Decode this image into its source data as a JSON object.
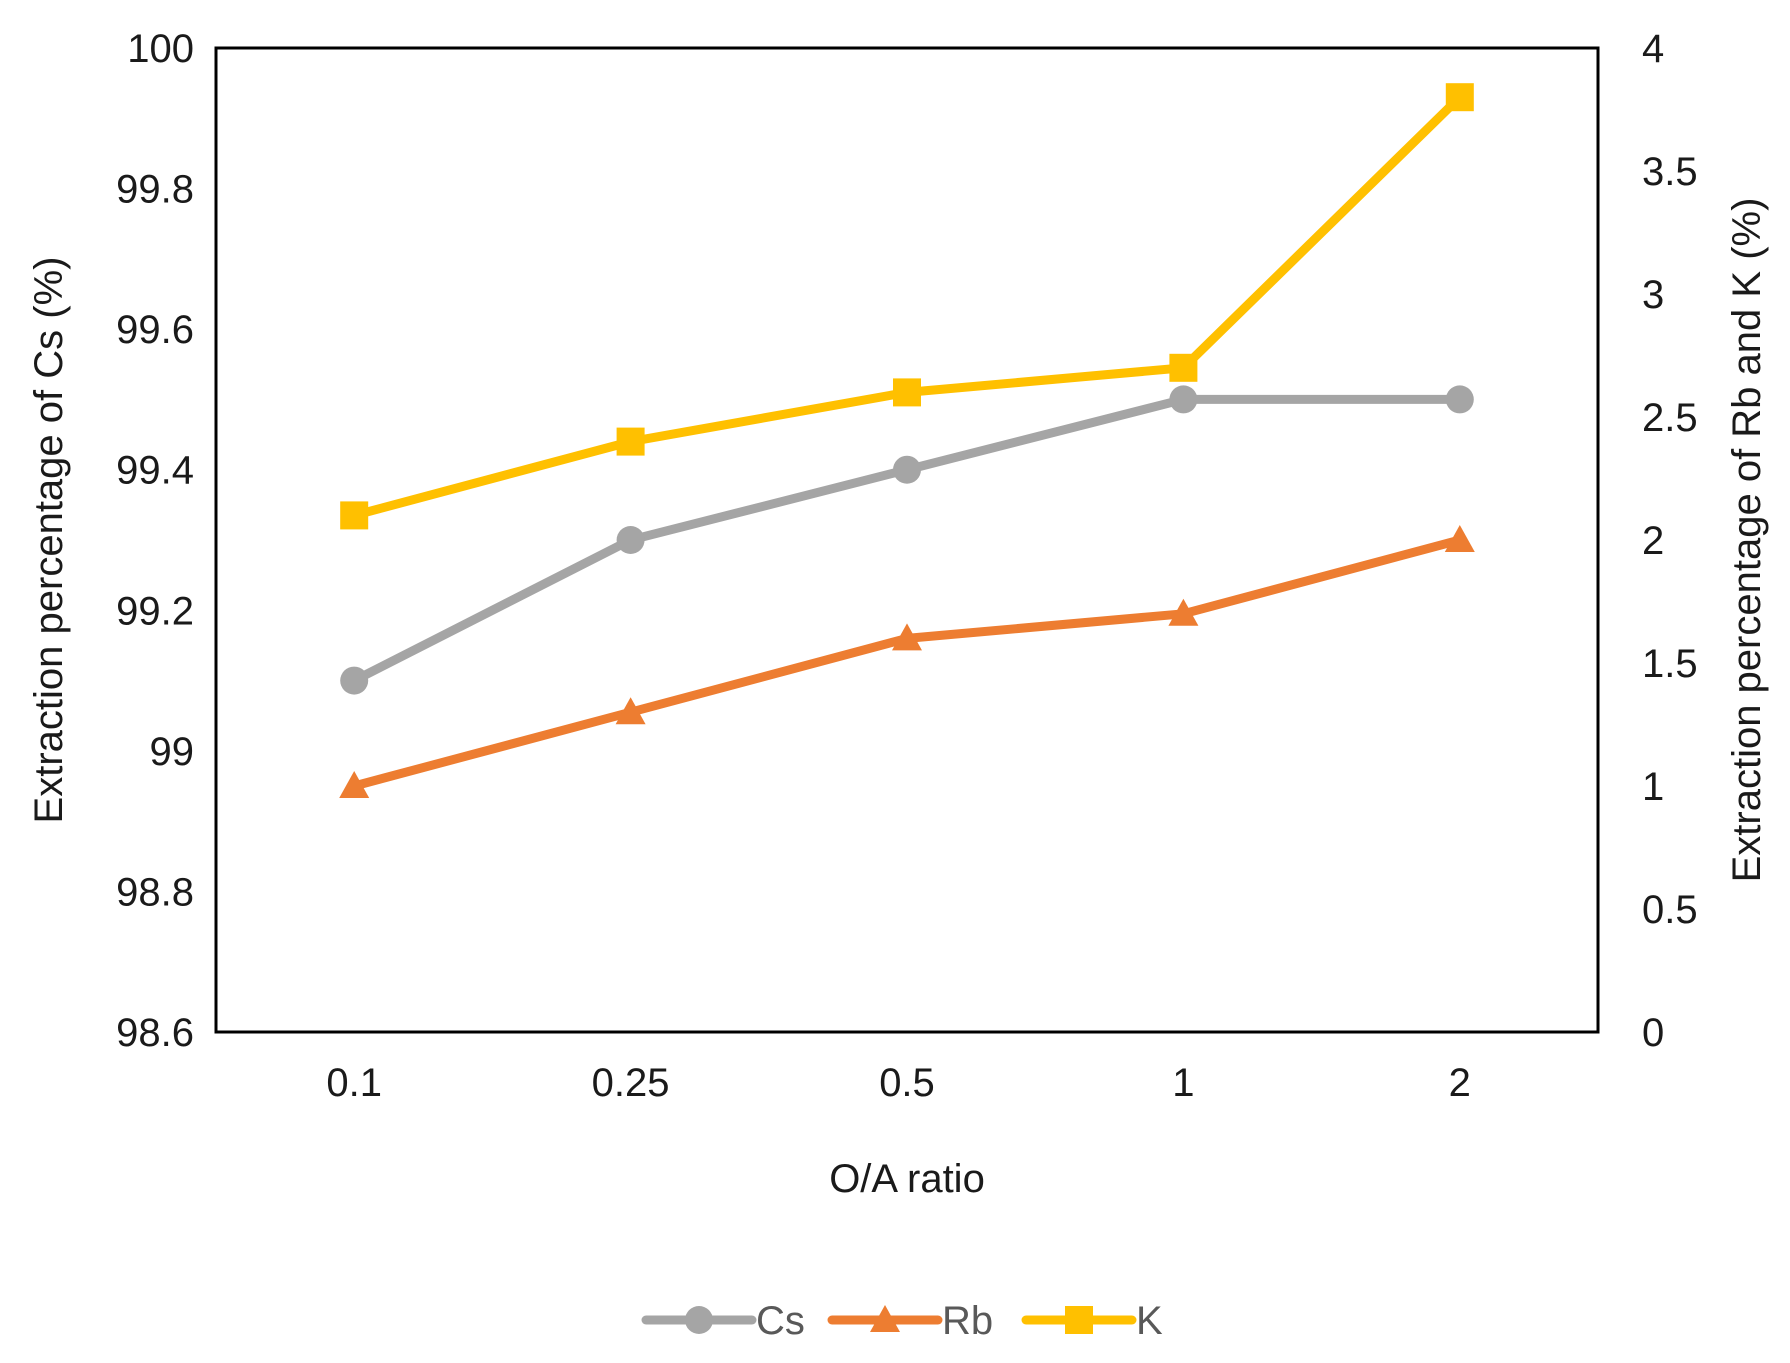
{
  "chart_data": {
    "type": "line",
    "title": "",
    "xlabel": "O/A ratio",
    "ylabel": "Extraction percentage of Cs (%)",
    "y2label": "Extraction percentage of Rb and K (%)",
    "categories": [
      "0.1",
      "0.25",
      "0.5",
      "1",
      "2"
    ],
    "ylim": [
      98.6,
      100
    ],
    "y_ticks": [
      "98.6",
      "98.8",
      "99",
      "99.2",
      "99.4",
      "99.6",
      "99.8",
      "100"
    ],
    "y2lim": [
      0,
      4
    ],
    "y2_ticks": [
      "0",
      "0.5",
      "1",
      "1.5",
      "2",
      "2.5",
      "3",
      "3.5",
      "4"
    ],
    "grid": false,
    "legend_position": "bottom",
    "series": [
      {
        "name": "Cs",
        "axis": "left",
        "marker": "circle",
        "color": "#a5a5a5",
        "values": [
          99.1,
          99.3,
          99.4,
          99.5,
          99.5
        ]
      },
      {
        "name": "Rb",
        "axis": "right",
        "marker": "triangle",
        "color": "#ed7d31",
        "values": [
          1.0,
          1.3,
          1.6,
          1.7,
          2.0
        ]
      },
      {
        "name": "K",
        "axis": "right",
        "marker": "square",
        "color": "#ffc000",
        "values": [
          2.1,
          2.4,
          2.6,
          2.7,
          3.8
        ]
      }
    ]
  }
}
